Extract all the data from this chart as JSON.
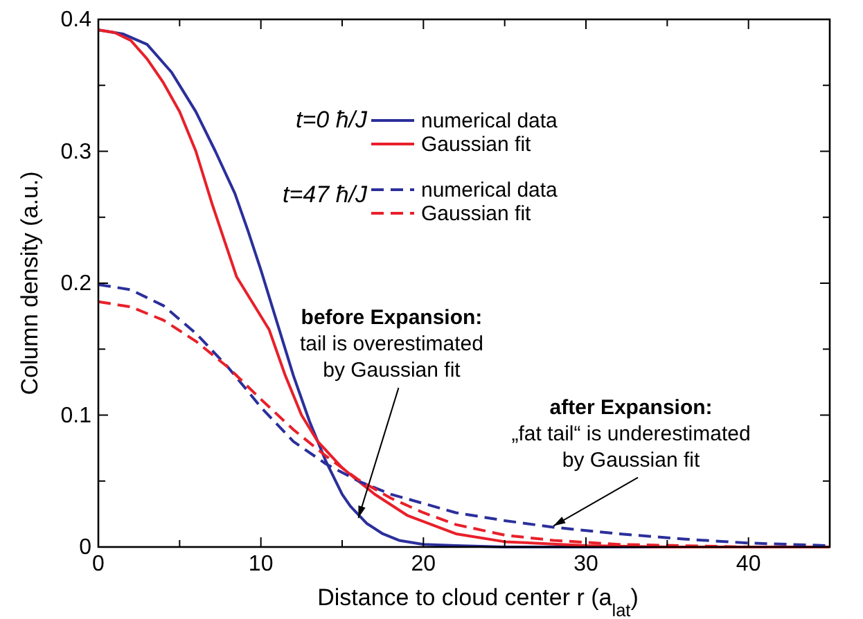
{
  "chart_data": {
    "type": "line",
    "xlabel": "Distance to cloud center r (a$_{lat}$)",
    "ylabel": "Column density (a.u.)",
    "xlim": [
      0,
      45
    ],
    "ylim": [
      0,
      0.4
    ],
    "xticks": [
      0,
      {
        "value": 5,
        "label": null
      },
      10,
      {
        "value": 15,
        "label": null
      },
      20,
      {
        "value": 25,
        "label": null
      },
      30,
      {
        "value": 35,
        "label": null
      },
      40,
      {
        "value": 45,
        "label": null
      }
    ],
    "yticks": [
      0,
      {
        "value": 0.05,
        "label": null
      },
      0.1,
      {
        "value": 0.15,
        "label": null
      },
      0.2,
      {
        "value": 0.25,
        "label": null
      },
      0.3,
      {
        "value": 0.35,
        "label": null
      },
      0.4
    ],
    "legend": "top right",
    "grid": false,
    "marker": "none",
    "series": [
      {
        "name": "numerical data",
        "color": "#2b2f9b",
        "line_style": "solid",
        "x": [
          0,
          1.5,
          3,
          4.5,
          6,
          7.2,
          8.4,
          9.2,
          10,
          11,
          12,
          13,
          14,
          15,
          15.5,
          16.5,
          17.5,
          18.5,
          20,
          22,
          25,
          30,
          35,
          40,
          45
        ],
        "values": [
          0.392,
          0.389,
          0.381,
          0.36,
          0.33,
          0.3,
          0.268,
          0.24,
          0.21,
          0.17,
          0.13,
          0.095,
          0.065,
          0.04,
          0.031,
          0.018,
          0.01,
          0.005,
          0.002,
          0.001,
          0,
          0,
          0,
          0,
          0
        ]
      },
      {
        "name": "Gaussian fit",
        "color": "#e8202a",
        "line_style": "solid",
        "x": [
          0,
          1,
          2,
          3,
          4,
          5,
          6,
          7,
          8.5,
          10.5,
          11.5,
          12.5,
          13.5,
          15,
          17,
          19,
          22,
          25,
          30,
          35,
          40,
          45
        ],
        "values": [
          0.392,
          0.39,
          0.384,
          0.37,
          0.352,
          0.33,
          0.3,
          0.26,
          0.205,
          0.165,
          0.13,
          0.1,
          0.08,
          0.06,
          0.04,
          0.024,
          0.01,
          0.004,
          0.001,
          0,
          0,
          0
        ]
      },
      {
        "name": "numerical data",
        "color": "#2b2f9b",
        "line_style": "dashed",
        "x": [
          0,
          2,
          4,
          6,
          8,
          10,
          12,
          14,
          16,
          18,
          20,
          22,
          25,
          28,
          32,
          36,
          40,
          45
        ],
        "values": [
          0.199,
          0.195,
          0.183,
          0.162,
          0.136,
          0.106,
          0.08,
          0.063,
          0.05,
          0.04,
          0.033,
          0.026,
          0.02,
          0.015,
          0.01,
          0.006,
          0.003,
          0.001
        ]
      },
      {
        "name": "Gaussian fit",
        "color": "#e8202a",
        "line_style": "dashed",
        "x": [
          0,
          2,
          4,
          6,
          8,
          10,
          12,
          14,
          16,
          18,
          20,
          22,
          25,
          28,
          32,
          36,
          40
        ],
        "values": [
          0.186,
          0.182,
          0.172,
          0.156,
          0.136,
          0.112,
          0.089,
          0.069,
          0.051,
          0.037,
          0.026,
          0.017,
          0.009,
          0.005,
          0.002,
          0.001,
          0
        ]
      }
    ],
    "annotations": [
      "t=0 ħ/J",
      "t=47 ħ/J",
      {
        "text": "before Expansion:\ntail is overestimated\nby Gaussian fit",
        "x": 16,
        "y": 0.022
      },
      {
        "text": "after Expansion:\n„fat tail“ is underestimated\nby Gaussian fit",
        "x": 28,
        "y": 0.016
      }
    ]
  }
}
